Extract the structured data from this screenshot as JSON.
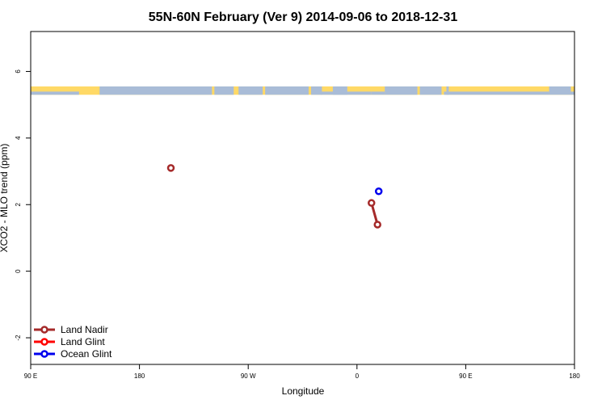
{
  "chart_data": {
    "type": "line",
    "title": "55N-60N February (Ver 9)   2014-09-06 to 2018-12-31",
    "xlabel": "Longitude",
    "ylabel": "XCO2 - MLO trend (ppm)",
    "xlim": [
      90,
      540
    ],
    "ylim": [
      -2.8,
      7.2
    ],
    "x_ticks": [
      {
        "value": 90,
        "label": "90 E"
      },
      {
        "value": 180,
        "label": "180"
      },
      {
        "value": 270,
        "label": "90 W"
      },
      {
        "value": 360,
        "label": "0"
      },
      {
        "value": 450,
        "label": "90 E"
      },
      {
        "value": 540,
        "label": "180"
      }
    ],
    "y_ticks": [
      {
        "value": -2,
        "label": "-2"
      },
      {
        "value": 0,
        "label": "0"
      },
      {
        "value": 2,
        "label": "2"
      },
      {
        "value": 4,
        "label": "4"
      },
      {
        "value": 6,
        "label": "6"
      }
    ],
    "grid": false,
    "legend_position": "bottom-left",
    "land_band": {
      "ymin": 5.3,
      "ymax": 5.55,
      "land_color": "#FFD966",
      "ocean_color": "#A9BCD7"
    },
    "series": [
      {
        "name": "Land Nadir",
        "color": "#A52A2A",
        "points": [
          [
            206,
            3.1
          ],
          [
            372,
            2.05
          ],
          [
            377,
            1.4
          ]
        ]
      },
      {
        "name": "Land Glint",
        "color": "#FF0000",
        "points": []
      },
      {
        "name": "Ocean Glint",
        "color": "#0000EE",
        "points": [
          [
            378,
            2.4
          ]
        ]
      }
    ]
  }
}
